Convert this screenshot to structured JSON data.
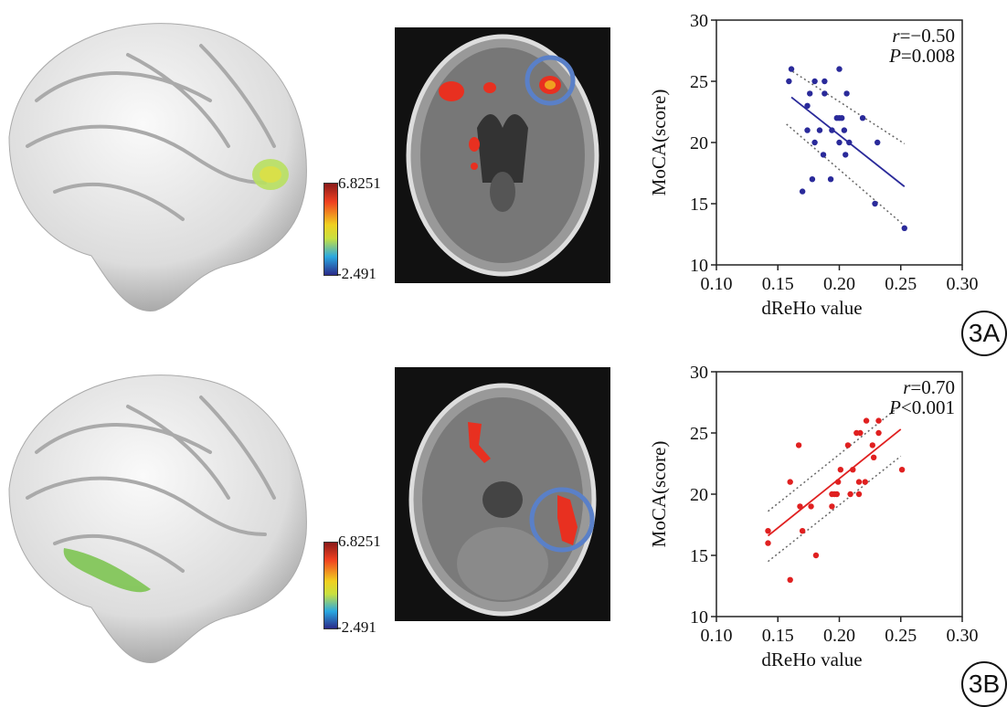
{
  "colorbar": {
    "max_label": "6.8251",
    "min_label": "-2.491",
    "colors": [
      "#2a2a8a",
      "#2aa8e0",
      "#c8e040",
      "#f0d020",
      "#f04020",
      "#8a1a1a"
    ]
  },
  "panels": [
    {
      "tag": "3A"
    },
    {
      "tag": "3B"
    }
  ],
  "accent": {
    "blue": "#2a2a9a",
    "red": "#e02020",
    "circle": "#5a80c8"
  },
  "chart_data": [
    {
      "type": "scatter",
      "xlabel": "dReHo value",
      "ylabel": "MoCA(score)",
      "xlim": [
        0.1,
        0.3
      ],
      "ylim": [
        10,
        30
      ],
      "xticks": [
        "0.10",
        "0.15",
        "0.20",
        "0.25",
        "0.30"
      ],
      "yticks": [
        "10",
        "15",
        "20",
        "25",
        "30"
      ],
      "annotation": {
        "r_label": "r",
        "r_value": "=−0.50",
        "p_label": "P",
        "p_value": "=0.008"
      },
      "color": "#2a2a9a",
      "points": [
        [
          0.161,
          26
        ],
        [
          0.159,
          25
        ],
        [
          0.18,
          25
        ],
        [
          0.188,
          25
        ],
        [
          0.176,
          24
        ],
        [
          0.188,
          24
        ],
        [
          0.206,
          24
        ],
        [
          0.2,
          26
        ],
        [
          0.174,
          23
        ],
        [
          0.198,
          22
        ],
        [
          0.2,
          22
        ],
        [
          0.202,
          22
        ],
        [
          0.219,
          22
        ],
        [
          0.174,
          21
        ],
        [
          0.184,
          21
        ],
        [
          0.194,
          21
        ],
        [
          0.204,
          21
        ],
        [
          0.18,
          20
        ],
        [
          0.2,
          20
        ],
        [
          0.208,
          20
        ],
        [
          0.231,
          20
        ],
        [
          0.187,
          19
        ],
        [
          0.205,
          19
        ],
        [
          0.178,
          17
        ],
        [
          0.193,
          17
        ],
        [
          0.17,
          16
        ],
        [
          0.229,
          15
        ],
        [
          0.253,
          13
        ]
      ],
      "fit": [
        [
          0.161,
          23.7
        ],
        [
          0.253,
          16.4
        ]
      ],
      "ci_upper": [
        [
          0.162,
          25.8
        ],
        [
          0.253,
          19.9
        ]
      ],
      "ci_lower": [
        [
          0.157,
          21.5
        ],
        [
          0.253,
          13.2
        ]
      ]
    },
    {
      "type": "scatter",
      "xlabel": "dReHo value",
      "ylabel": "MoCA(score)",
      "xlim": [
        0.1,
        0.3
      ],
      "ylim": [
        10,
        30
      ],
      "xticks": [
        "0.10",
        "0.15",
        "0.20",
        "0.25",
        "0.30"
      ],
      "yticks": [
        "10",
        "15",
        "20",
        "25",
        "30"
      ],
      "annotation": {
        "r_label": "r",
        "r_value": "=0.70",
        "p_label": "P",
        "p_value": "<0.001"
      },
      "color": "#e02020",
      "points": [
        [
          0.142,
          17
        ],
        [
          0.142,
          16
        ],
        [
          0.16,
          21
        ],
        [
          0.16,
          13
        ],
        [
          0.167,
          24
        ],
        [
          0.168,
          19
        ],
        [
          0.17,
          17
        ],
        [
          0.177,
          19
        ],
        [
          0.181,
          15
        ],
        [
          0.194,
          19
        ],
        [
          0.194,
          20
        ],
        [
          0.196,
          20
        ],
        [
          0.198,
          20
        ],
        [
          0.199,
          21
        ],
        [
          0.201,
          22
        ],
        [
          0.207,
          24
        ],
        [
          0.209,
          20
        ],
        [
          0.211,
          22
        ],
        [
          0.214,
          25
        ],
        [
          0.217,
          25
        ],
        [
          0.216,
          21
        ],
        [
          0.216,
          20
        ],
        [
          0.221,
          21
        ],
        [
          0.222,
          26
        ],
        [
          0.227,
          24
        ],
        [
          0.228,
          23
        ],
        [
          0.232,
          26
        ],
        [
          0.232,
          25
        ],
        [
          0.251,
          22
        ]
      ],
      "fit": [
        [
          0.142,
          16.6
        ],
        [
          0.25,
          25.3
        ]
      ],
      "ci_upper": [
        [
          0.142,
          18.6
        ],
        [
          0.248,
          27.1
        ]
      ],
      "ci_lower": [
        [
          0.142,
          14.5
        ],
        [
          0.25,
          23.1
        ]
      ]
    }
  ]
}
